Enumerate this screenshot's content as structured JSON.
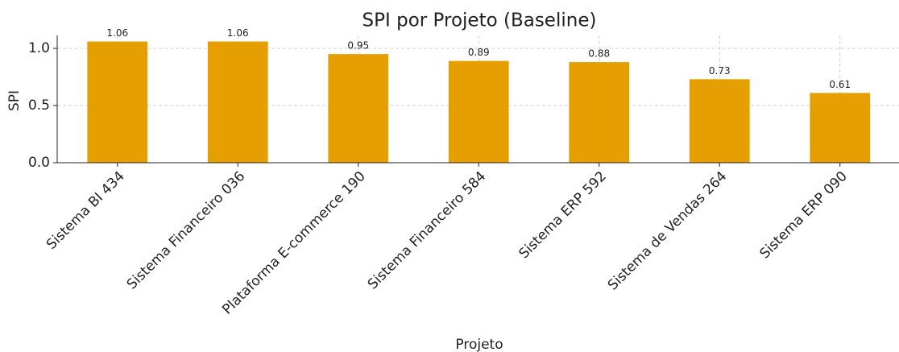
{
  "chart_data": {
    "type": "bar",
    "title": "SPI por Projeto (Baseline)",
    "xlabel": "Projeto",
    "ylabel": "SPI",
    "categories": [
      "Sistema BI 434",
      "Sistema Financeiro 036",
      "Plataforma E-commerce 190",
      "Sistema Financeiro 584",
      "Sistema ERP 592",
      "Sistema de Vendas 264",
      "Sistema ERP 090"
    ],
    "values": [
      1.06,
      1.06,
      0.95,
      0.89,
      0.88,
      0.73,
      0.61
    ],
    "color": "#e69f00",
    "ylim": [
      0,
      1.113
    ],
    "yticks": [
      {
        "value": 0,
        "label": "0.0"
      },
      0.5,
      {
        "value": 1,
        "label": "1.0"
      }
    ],
    "grid": true
  }
}
